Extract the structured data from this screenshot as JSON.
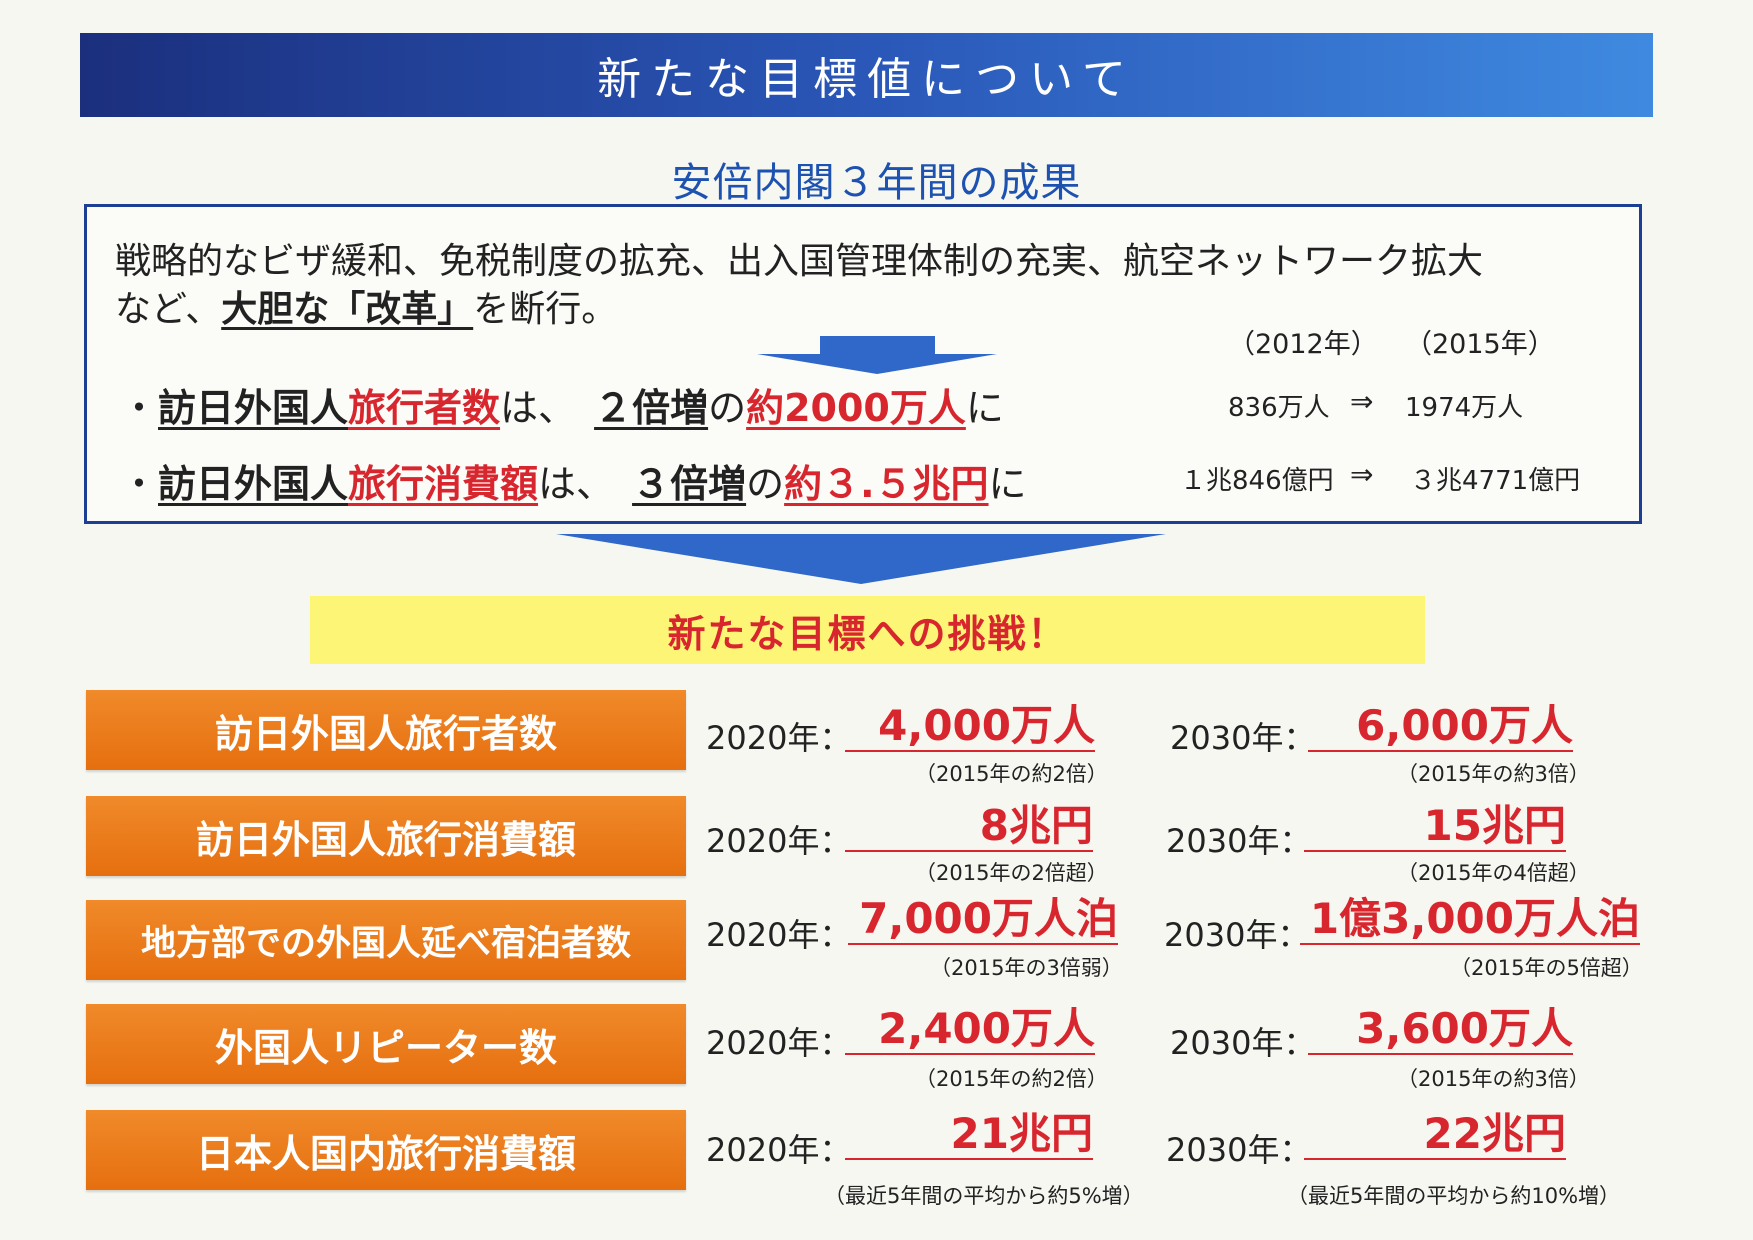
{
  "header": {
    "title": "新たな目標値について"
  },
  "subtitle": "安倍内閣３年間の成果",
  "achievements": {
    "intro_line1": "戦略的なビザ緩和、免税制度の拡充、出入国管理体制の充実、航空ネットワーク拡大",
    "intro_line2_pre": "など、",
    "intro_line2_bold": "大胆な「改革」",
    "intro_line2_post": "を断行。",
    "year_from": "（2012年）",
    "year_to": "（2015年）",
    "bullets": [
      {
        "dot": "・",
        "subject": "訪日外国人",
        "metric": "旅行者数",
        "mid": "は、",
        "multiplier": "２倍増",
        "no": "の",
        "result": "約2000万人",
        "ni": "に",
        "stat_from": "836万人",
        "arrow": "⇒",
        "stat_to": "1974万人"
      },
      {
        "dot": "・",
        "subject": "訪日外国人",
        "metric": "旅行消費額",
        "mid": "は、",
        "multiplier": "３倍増",
        "no": "の",
        "result": "約３.５兆円",
        "ni": "に",
        "stat_from": "１兆846億円",
        "arrow": "⇒",
        "stat_to": "３兆4771億円"
      }
    ]
  },
  "challenge": "新たな目標への挑戦！",
  "targets": [
    {
      "label": "訪日外国人旅行者数",
      "y2020_label": "2020年：",
      "y2020_value": "4,000万人",
      "y2020_note": "（2015年の約2倍）",
      "y2030_label": "2030年：",
      "y2030_value": "6,000万人",
      "y2030_note": "（2015年の約3倍）"
    },
    {
      "label": "訪日外国人旅行消費額",
      "y2020_label": "2020年：",
      "y2020_value": "8兆円",
      "y2020_note": "（2015年の2倍超）",
      "y2030_label": "2030年：",
      "y2030_value": "15兆円",
      "y2030_note": "（2015年の4倍超）"
    },
    {
      "label": "地方部での外国人延べ宿泊者数",
      "y2020_label": "2020年：",
      "y2020_value": "7,000万人泊",
      "y2020_note": "（2015年の3倍弱）",
      "y2030_label": "2030年：",
      "y2030_value": "1億3,000万人泊",
      "y2030_note": "（2015年の5倍超）"
    },
    {
      "label": "外国人リピーター数",
      "y2020_label": "2020年：",
      "y2020_value": "2,400万人",
      "y2020_note": "（2015年の約2倍）",
      "y2030_label": "2030年：",
      "y2030_value": "3,600万人",
      "y2030_note": "（2015年の約3倍）"
    },
    {
      "label": "日本人国内旅行消費額",
      "y2020_label": "2020年：",
      "y2020_value": "21兆円",
      "y2020_note": "（最近5年間の平均から約5%増）",
      "y2030_label": "2030年：",
      "y2030_value": "22兆円",
      "y2030_note": "（最近5年間の平均から約10%増）"
    }
  ]
}
